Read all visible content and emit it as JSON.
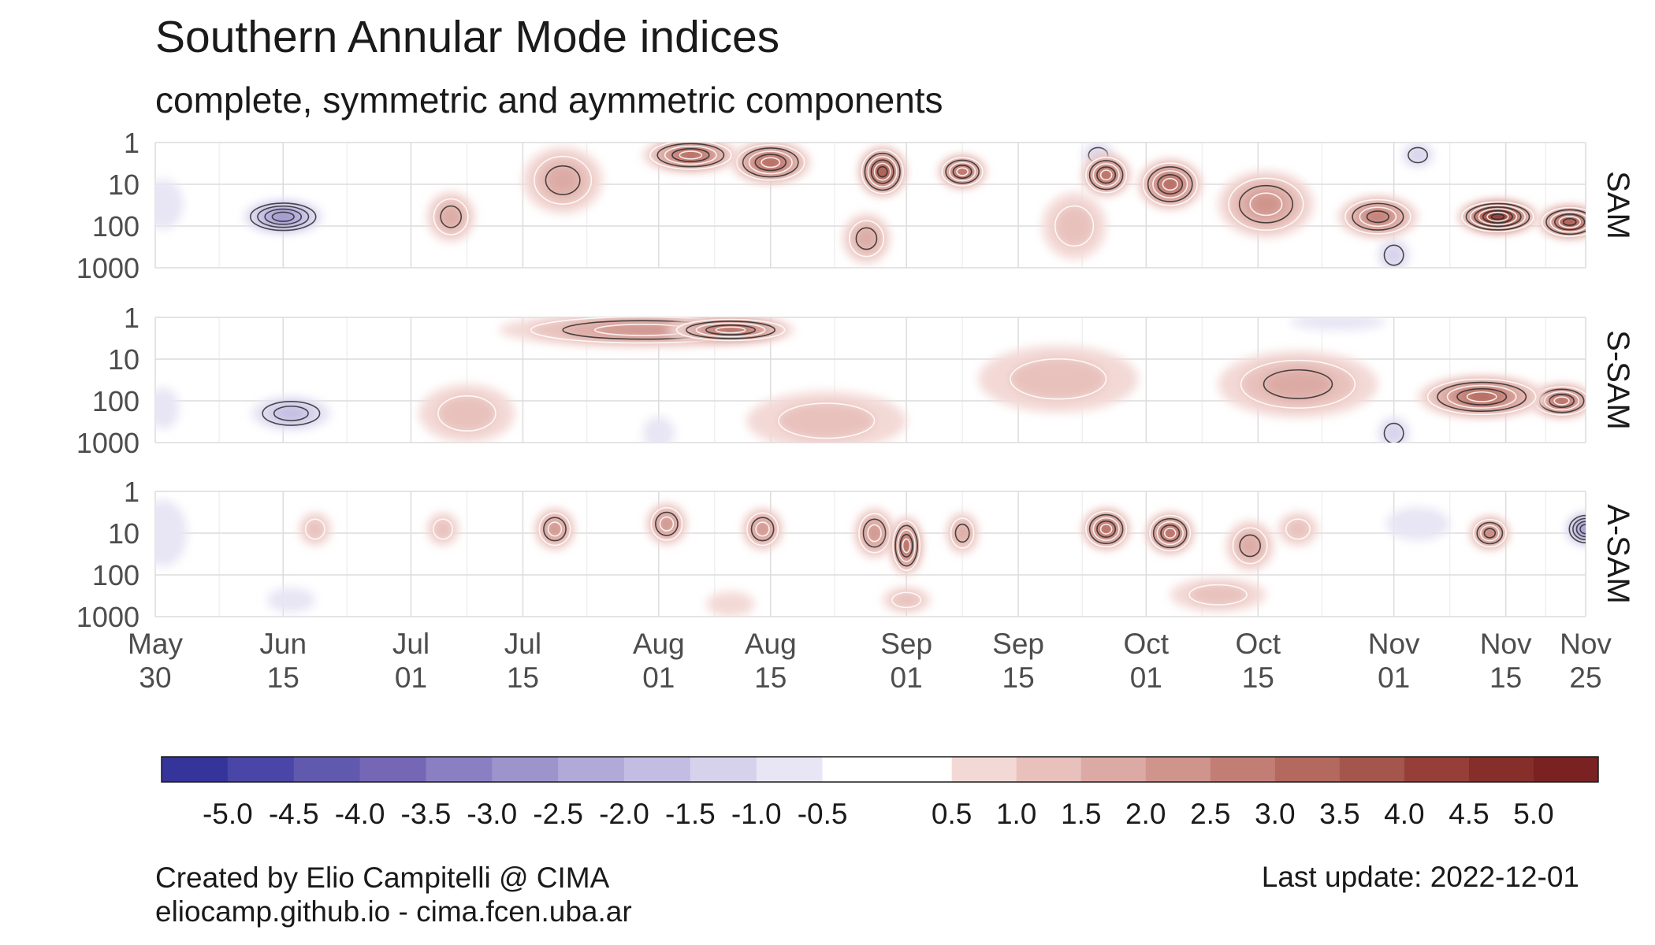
{
  "title": "Southern Annular Mode indices",
  "subtitle": "complete, symmetric and aymmetric components",
  "credit": {
    "line1": "Created by Elio Campitelli @ CIMA",
    "line2": "eliocamp.github.io - cima.fcen.uba.ar"
  },
  "last_update": "Last update: 2022-12-01",
  "chart_data": {
    "type": "heatmap",
    "x_range": [
      "2022-05-30",
      "2022-11-25"
    ],
    "x_ticks": [
      {
        "date": "2022-05-30",
        "label": [
          "May",
          "30"
        ]
      },
      {
        "date": "2022-06-15",
        "label": [
          "Jun",
          "15"
        ]
      },
      {
        "date": "2022-07-01",
        "label": [
          "Jul",
          "01"
        ]
      },
      {
        "date": "2022-07-15",
        "label": [
          "Jul",
          "15"
        ]
      },
      {
        "date": "2022-08-01",
        "label": [
          "Aug",
          "01"
        ]
      },
      {
        "date": "2022-08-15",
        "label": [
          "Aug",
          "15"
        ]
      },
      {
        "date": "2022-09-01",
        "label": [
          "Sep",
          "01"
        ]
      },
      {
        "date": "2022-09-15",
        "label": [
          "Sep",
          "15"
        ]
      },
      {
        "date": "2022-10-01",
        "label": [
          "Oct",
          "01"
        ]
      },
      {
        "date": "2022-10-15",
        "label": [
          "Oct",
          "15"
        ]
      },
      {
        "date": "2022-11-01",
        "label": [
          "Nov",
          "01"
        ]
      },
      {
        "date": "2022-11-15",
        "label": [
          "Nov",
          "15"
        ]
      },
      {
        "date": "2022-11-25",
        "label": [
          "Nov",
          "25"
        ]
      }
    ],
    "y_scale": "log",
    "y_reversed": true,
    "y_ticks": [
      1,
      10,
      100,
      1000
    ],
    "y_range": [
      1,
      1000
    ],
    "panels": [
      {
        "name": "SAM",
        "blobs": [
          {
            "date": "2022-06-15",
            "level": 60,
            "dx": 5,
            "dy": 0.4,
            "v": -2.8
          },
          {
            "date": "2022-05-31",
            "level": 30,
            "dx": 2.5,
            "dy": 0.6,
            "v": -0.8
          },
          {
            "date": "2022-07-06",
            "level": 60,
            "dx": 3,
            "dy": 0.6,
            "v": 1.6
          },
          {
            "date": "2022-07-20",
            "level": 8,
            "dx": 5,
            "dy": 0.8,
            "v": 1.5
          },
          {
            "date": "2022-08-05",
            "level": 2,
            "dx": 6,
            "dy": 0.4,
            "v": 3.4
          },
          {
            "date": "2022-08-15",
            "level": 3,
            "dx": 5,
            "dy": 0.5,
            "v": 3.0
          },
          {
            "date": "2022-08-29",
            "level": 5,
            "dx": 3,
            "dy": 0.6,
            "v": 3.6
          },
          {
            "date": "2022-09-08",
            "level": 5,
            "dx": 3,
            "dy": 0.4,
            "v": 3.2
          },
          {
            "date": "2022-08-27",
            "level": 200,
            "dx": 3,
            "dy": 0.6,
            "v": 1.8
          },
          {
            "date": "2022-09-22",
            "level": 100,
            "dx": 4,
            "dy": 0.8,
            "v": 1.2
          },
          {
            "date": "2022-09-26",
            "level": 6,
            "dx": 3,
            "dy": 0.5,
            "v": 3.2
          },
          {
            "date": "2022-10-04",
            "level": 10,
            "dx": 4,
            "dy": 0.6,
            "v": 3.4
          },
          {
            "date": "2022-10-16",
            "level": 30,
            "dx": 6,
            "dy": 0.8,
            "v": 2.0
          },
          {
            "date": "2022-10-30",
            "level": 60,
            "dx": 5,
            "dy": 0.5,
            "v": 2.8
          },
          {
            "date": "2022-11-14",
            "level": 60,
            "dx": 5,
            "dy": 0.4,
            "v": 4.8
          },
          {
            "date": "2022-11-23",
            "level": 80,
            "dx": 4,
            "dy": 0.4,
            "v": 3.8
          },
          {
            "date": "2022-11-01",
            "level": 500,
            "dx": 2,
            "dy": 0.4,
            "v": -1.2
          },
          {
            "date": "2022-09-25",
            "level": 2,
            "dx": 2,
            "dy": 0.3,
            "v": -1.0
          },
          {
            "date": "2022-11-04",
            "level": 2,
            "dx": 2,
            "dy": 0.3,
            "v": -1.0
          }
        ]
      },
      {
        "name": "S-SAM",
        "blobs": [
          {
            "date": "2022-06-16",
            "level": 200,
            "dx": 5,
            "dy": 0.4,
            "v": -1.8
          },
          {
            "date": "2022-05-31",
            "level": 150,
            "dx": 2,
            "dy": 0.5,
            "v": -0.7
          },
          {
            "date": "2022-07-30",
            "level": 2,
            "dx": 18,
            "dy": 0.4,
            "v": 2.2
          },
          {
            "date": "2022-08-10",
            "level": 2,
            "dx": 8,
            "dy": 0.3,
            "v": 3.0
          },
          {
            "date": "2022-07-08",
            "level": 200,
            "dx": 6,
            "dy": 0.7,
            "v": 1.4
          },
          {
            "date": "2022-08-22",
            "level": 300,
            "dx": 10,
            "dy": 0.7,
            "v": 1.3
          },
          {
            "date": "2022-09-20",
            "level": 30,
            "dx": 10,
            "dy": 0.8,
            "v": 1.0
          },
          {
            "date": "2022-10-20",
            "level": 40,
            "dx": 10,
            "dy": 0.8,
            "v": 1.5
          },
          {
            "date": "2022-11-12",
            "level": 80,
            "dx": 8,
            "dy": 0.5,
            "v": 3.4
          },
          {
            "date": "2022-11-22",
            "level": 100,
            "dx": 4,
            "dy": 0.4,
            "v": 3.0
          },
          {
            "date": "2022-11-01",
            "level": 600,
            "dx": 2,
            "dy": 0.4,
            "v": -1.2
          },
          {
            "date": "2022-08-01",
            "level": 600,
            "dx": 2,
            "dy": 0.4,
            "v": -0.9
          },
          {
            "date": "2022-10-25",
            "level": 1.3,
            "dx": 6,
            "dy": 0.2,
            "v": -0.7
          }
        ]
      },
      {
        "name": "A-SAM",
        "blobs": [
          {
            "date": "2022-05-31",
            "level": 10,
            "dx": 3,
            "dy": 0.8,
            "v": -0.7
          },
          {
            "date": "2022-06-16",
            "level": 400,
            "dx": 3,
            "dy": 0.3,
            "v": -0.9
          },
          {
            "date": "2022-06-19",
            "level": 8,
            "dx": 2,
            "dy": 0.4,
            "v": 1.2
          },
          {
            "date": "2022-07-05",
            "level": 8,
            "dx": 2,
            "dy": 0.4,
            "v": 1.2
          },
          {
            "date": "2022-07-19",
            "level": 8,
            "dx": 2.5,
            "dy": 0.5,
            "v": 2.2
          },
          {
            "date": "2022-08-02",
            "level": 6,
            "dx": 2.5,
            "dy": 0.5,
            "v": 2.4
          },
          {
            "date": "2022-08-14",
            "level": 8,
            "dx": 2.5,
            "dy": 0.5,
            "v": 2.0
          },
          {
            "date": "2022-08-28",
            "level": 10,
            "dx": 2.5,
            "dy": 0.6,
            "v": 2.4
          },
          {
            "date": "2022-09-01",
            "level": 20,
            "dx": 2,
            "dy": 0.7,
            "v": 3.0
          },
          {
            "date": "2022-09-08",
            "level": 10,
            "dx": 2,
            "dy": 0.5,
            "v": 1.8
          },
          {
            "date": "2022-09-26",
            "level": 8,
            "dx": 3,
            "dy": 0.5,
            "v": 3.4
          },
          {
            "date": "2022-10-04",
            "level": 10,
            "dx": 3,
            "dy": 0.5,
            "v": 3.0
          },
          {
            "date": "2022-10-14",
            "level": 20,
            "dx": 3,
            "dy": 0.6,
            "v": 1.6
          },
          {
            "date": "2022-10-20",
            "level": 8,
            "dx": 2.5,
            "dy": 0.4,
            "v": 1.4
          },
          {
            "date": "2022-11-04",
            "level": 6,
            "dx": 4,
            "dy": 0.4,
            "v": -0.8
          },
          {
            "date": "2022-11-13",
            "level": 10,
            "dx": 2.5,
            "dy": 0.4,
            "v": 2.8
          },
          {
            "date": "2022-11-25",
            "level": 8,
            "dx": 2.5,
            "dy": 0.4,
            "v": -2.8
          },
          {
            "date": "2022-10-10",
            "level": 300,
            "dx": 6,
            "dy": 0.4,
            "v": 1.0
          },
          {
            "date": "2022-08-10",
            "level": 500,
            "dx": 3,
            "dy": 0.3,
            "v": 0.9
          },
          {
            "date": "2022-09-01",
            "level": 400,
            "dx": 3,
            "dy": 0.3,
            "v": 1.2
          }
        ]
      }
    ],
    "legend": {
      "placement": "bottom",
      "breaks": [
        -5.5,
        -5.0,
        -4.5,
        -4.0,
        -3.5,
        -3.0,
        -2.5,
        -2.0,
        -1.5,
        -1.0,
        -0.5,
        0.5,
        1.0,
        1.5,
        2.0,
        2.5,
        3.0,
        3.5,
        4.0,
        4.5,
        5.0,
        5.5
      ],
      "labels": [
        "-5.0",
        "-4.5",
        "-4.0",
        "-3.5",
        "-3.0",
        "-2.5",
        "-2.0",
        "-1.5",
        "-1.0",
        "-0.5",
        "0.5",
        "1.0",
        "1.5",
        "2.0",
        "2.5",
        "3.0",
        "3.5",
        "4.0",
        "4.5",
        "5.0"
      ],
      "colors": [
        "#35349a",
        "#4a46a8",
        "#6159ae",
        "#7567b6",
        "#8a7fc2",
        "#9d94cc",
        "#b1a9d8",
        "#c4bde3",
        "#d7d2ec",
        "#e8e5f4",
        "#ffffff",
        "#f3d9d6",
        "#e8c1bc",
        "#dcaaa4",
        "#cf948c",
        "#c27e75",
        "#b4695f",
        "#a5564c",
        "#963f38",
        "#862f2a",
        "#7a2222"
      ]
    }
  }
}
